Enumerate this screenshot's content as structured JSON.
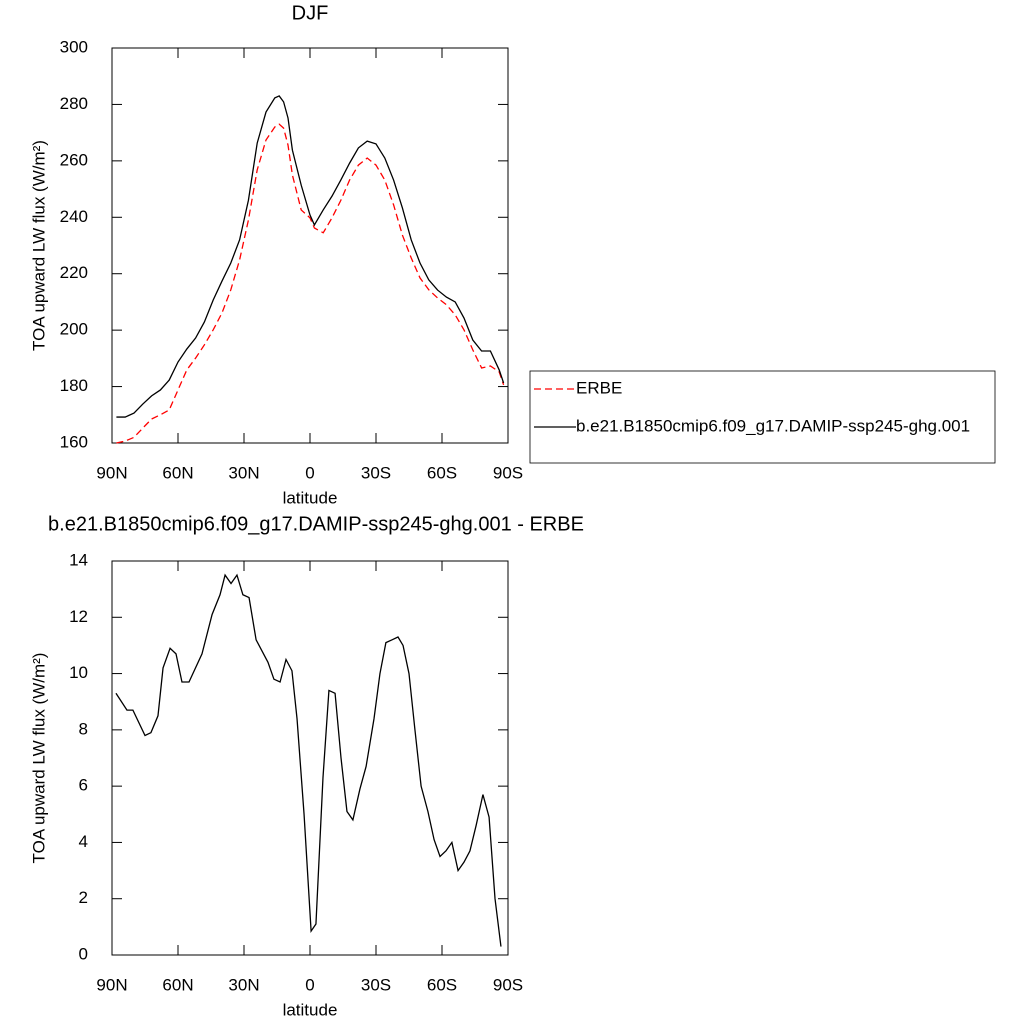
{
  "chart_data": [
    {
      "type": "line",
      "title": "DJF",
      "xlabel": "latitude",
      "ylabel": "TOA upward LW flux (W/m²)",
      "xlim": [
        90,
        -90
      ],
      "ylim": [
        160,
        300
      ],
      "xticks": [
        {
          "value": 90,
          "label": "90N"
        },
        {
          "value": 60,
          "label": "60N"
        },
        {
          "value": 30,
          "label": "30N"
        },
        0,
        {
          "value": -30,
          "label": "30S"
        },
        {
          "value": -60,
          "label": "60S"
        },
        {
          "value": -90,
          "label": "90S"
        }
      ],
      "yticks": [
        160,
        180,
        200,
        220,
        240,
        260,
        280,
        300
      ],
      "legend": "right",
      "x": [
        88,
        84,
        80,
        76,
        72,
        68,
        64,
        60,
        56,
        52,
        48,
        44,
        40,
        36,
        32,
        28,
        24,
        20,
        16,
        14,
        12,
        10,
        8,
        4,
        0,
        -2,
        -6,
        -10,
        -14,
        -18,
        -22,
        -26,
        -30,
        -34,
        -38,
        -42,
        -46,
        -50,
        -54,
        -58,
        -62,
        -66,
        -70,
        -74,
        -78,
        -82,
        -86,
        -88
      ],
      "series": [
        {
          "name": "ERBE",
          "color": "#ff0000",
          "line_style": "dashed",
          "values": [
            160,
            160.7,
            162,
            165.3,
            168.5,
            170,
            171.7,
            178.8,
            185.9,
            190.1,
            194.8,
            200.1,
            206.1,
            214.3,
            224.9,
            239,
            256.8,
            267.4,
            272,
            273,
            271.6,
            265.6,
            255,
            242.6,
            239.8,
            236.2,
            234.5,
            239.8,
            246,
            253.2,
            258.5,
            261,
            258.5,
            253.2,
            244.4,
            233.7,
            225.6,
            218.5,
            214.3,
            211.4,
            209,
            205.4,
            200.1,
            193,
            186.6,
            187.3,
            185.2,
            180.6
          ]
        },
        {
          "name": "b.e21.B1850cmip6.f09_g17.DAMIP-ssp245-ghg.001",
          "color": "#000000",
          "line_style": "solid",
          "values": [
            169.2,
            169.2,
            170.6,
            173.8,
            176.7,
            178.8,
            182.3,
            188.7,
            193.3,
            197.2,
            202.9,
            210.7,
            217.4,
            223.8,
            232,
            246,
            266.3,
            277.3,
            282.3,
            283,
            280.9,
            275.2,
            263.8,
            251.4,
            240.8,
            237.3,
            242.6,
            247.5,
            253.2,
            259.2,
            264.6,
            267,
            266,
            261,
            253.2,
            243.3,
            232,
            223.8,
            217.8,
            214.2,
            211.7,
            210,
            204.3,
            196.5,
            192.6,
            192.6,
            185.9,
            181.3
          ]
        }
      ]
    },
    {
      "type": "line",
      "title": "b.e21.B1850cmip6.f09_g17.DAMIP-ssp245-ghg.001 - ERBE",
      "xlabel": "latitude",
      "ylabel": "TOA upward LW flux (W/m²)",
      "xlim": [
        90,
        -90
      ],
      "ylim": [
        0,
        14
      ],
      "xticks": [
        {
          "value": 90,
          "label": "90N"
        },
        {
          "value": 60,
          "label": "60N"
        },
        {
          "value": 30,
          "label": "30N"
        },
        0,
        {
          "value": -30,
          "label": "30S"
        },
        {
          "value": -60,
          "label": "60S"
        },
        {
          "value": -90,
          "label": "90S"
        }
      ],
      "yticks": [
        0,
        2,
        4,
        6,
        8,
        10,
        12,
        14
      ],
      "color": "#000000",
      "x": [
        88.2,
        83.2,
        80.5,
        75,
        72.3,
        69.1,
        66.8,
        63.6,
        60.9,
        58.2,
        55,
        49.1,
        44.5,
        40.9,
        38.6,
        35.9,
        33.2,
        30.5,
        27.7,
        24.5,
        19.1,
        16.4,
        13.6,
        10.9,
        8.2,
        5.9,
        2.7,
        -0.5,
        -2.7,
        -5.9,
        -8.6,
        -11.4,
        -14.1,
        -16.8,
        -19.5,
        -22.7,
        -25.5,
        -29.1,
        -31.8,
        -34.5,
        -37.3,
        -40,
        -42.3,
        -45,
        -47.7,
        -50.5,
        -53.6,
        -56.4,
        -59.1,
        -61.8,
        -64.5,
        -67.3,
        -70,
        -72.7,
        -75.5,
        -78.6,
        -81.4,
        -84.1,
        -86.8
      ],
      "values": [
        9.3,
        8.7,
        8.7,
        7.8,
        7.9,
        8.5,
        10.2,
        10.9,
        10.7,
        9.7,
        9.7,
        10.7,
        12.1,
        12.8,
        13.5,
        13.2,
        13.5,
        12.8,
        12.7,
        11.2,
        10.4,
        9.8,
        9.7,
        10.5,
        10.1,
        8.4,
        5,
        0.85,
        1.1,
        6.3,
        9.4,
        9.3,
        7,
        5.1,
        4.8,
        5.9,
        6.7,
        8.4,
        10,
        11.1,
        11.2,
        11.3,
        11,
        10,
        8,
        6,
        5.1,
        4.1,
        3.5,
        3.7,
        4,
        3,
        3.3,
        3.7,
        4.6,
        5.7,
        4.9,
        2,
        0.3
      ]
    }
  ]
}
